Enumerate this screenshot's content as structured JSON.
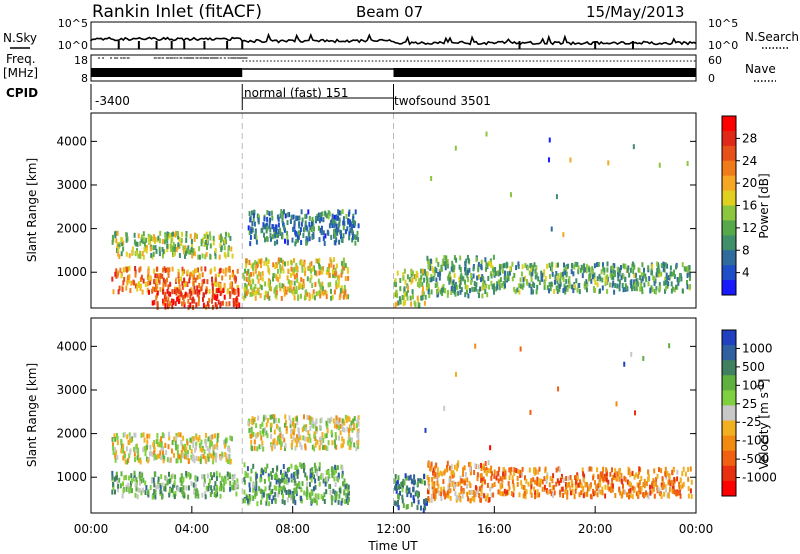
{
  "header": {
    "station": "Rankin Inlet (fitACF)",
    "beam": "Beam 07",
    "date": "15/May/2013"
  },
  "status_panel": {
    "nsky_label": "N.Sky",
    "nsearch_label": "N.Search",
    "noise_ticks": [
      "10^5",
      "10^0"
    ],
    "freq_label": "Freq.",
    "freq_unit": "[MHz]",
    "freq_ticks": [
      "18",
      "8"
    ],
    "nave_label": "Nave",
    "nave_ticks": [
      "60",
      "0"
    ],
    "cpid_label": "CPID",
    "cpid_modes": [
      {
        "start_hour": 0,
        "end_hour": 6,
        "label": "-3400"
      },
      {
        "start_hour": 6,
        "end_hour": 12,
        "label": "normal (fast) 151"
      },
      {
        "start_hour": 12,
        "end_hour": 24,
        "label": "twofsound 3501"
      }
    ]
  },
  "chart_data": [
    {
      "type": "heatmap",
      "parameter": "power",
      "ylabel": "Slant Range [km]",
      "ylim": [
        180,
        4650
      ],
      "yticks": [
        1000,
        2000,
        3000,
        4000
      ],
      "xlim": [
        0,
        24
      ],
      "colorbar": {
        "label": "Power [dB]",
        "ticks": [
          4,
          8,
          12,
          16,
          20,
          24,
          28
        ],
        "range": [
          0,
          32
        ],
        "colors": [
          "#1a1aff",
          "#1f4fc8",
          "#2f6b9c",
          "#3f8f6a",
          "#56a84a",
          "#8cc63f",
          "#e0d020",
          "#f5a623",
          "#f07b1a",
          "#e8501a",
          "#e02818",
          "#ff0000"
        ]
      },
      "echo_regions": [
        {
          "t0": 0.8,
          "t1": 5.8,
          "r0": 600,
          "r1": 1150,
          "level": 0.7
        },
        {
          "t0": 0.8,
          "t1": 5.6,
          "r0": 1400,
          "r1": 1950,
          "level": 0.45
        },
        {
          "t0": 2.2,
          "t1": 5.9,
          "r0": 250,
          "r1": 650,
          "level": 0.85
        },
        {
          "t0": 6.0,
          "t1": 10.2,
          "r0": 450,
          "r1": 1350,
          "level": 0.55
        },
        {
          "t0": 6.2,
          "t1": 10.6,
          "r0": 1700,
          "r1": 2450,
          "level": 0.25
        },
        {
          "t0": 12.0,
          "t1": 13.3,
          "r0": 300,
          "r1": 1100,
          "level": 0.45
        },
        {
          "t0": 13.3,
          "t1": 16.0,
          "r0": 500,
          "r1": 1400,
          "level": 0.35
        },
        {
          "t0": 16.0,
          "t1": 23.8,
          "r0": 600,
          "r1": 1250,
          "level": 0.35
        }
      ]
    },
    {
      "type": "heatmap",
      "parameter": "velocity",
      "ylabel": "Slant Range [km]",
      "ylim": [
        180,
        4650
      ],
      "yticks": [
        1000,
        2000,
        3000,
        4000
      ],
      "xlim": [
        0,
        24
      ],
      "xticks": [
        "00:00",
        "04:00",
        "08:00",
        "12:00",
        "16:00",
        "20:00",
        "00:00"
      ],
      "xlabel": "Time UT",
      "colorbar": {
        "label": "Velocity [m s-1]",
        "ticks": [
          1000,
          500,
          100,
          25,
          -25,
          -100,
          -500,
          -1000
        ],
        "colors": [
          "#2040c0",
          "#3060a0",
          "#408060",
          "#60b040",
          "#7fd040",
          "#c8c8c8",
          "#f0b020",
          "#f08a10",
          "#f06010",
          "#e83010",
          "#ff0000"
        ]
      },
      "echo_regions": [
        {
          "t0": 0.8,
          "t1": 5.8,
          "r0": 600,
          "r1": 1150,
          "level": 0.35
        },
        {
          "t0": 0.8,
          "t1": 5.6,
          "r0": 1400,
          "r1": 2050,
          "level": 0.5
        },
        {
          "t0": 6.0,
          "t1": 10.2,
          "r0": 450,
          "r1": 1350,
          "level": 0.3
        },
        {
          "t0": 6.2,
          "t1": 10.6,
          "r0": 1700,
          "r1": 2450,
          "level": 0.5
        },
        {
          "t0": 12.0,
          "t1": 13.3,
          "r0": 300,
          "r1": 1100,
          "level": 0.2
        },
        {
          "t0": 13.3,
          "t1": 16.0,
          "r0": 500,
          "r1": 1400,
          "level": 0.65
        },
        {
          "t0": 16.0,
          "t1": 23.8,
          "r0": 600,
          "r1": 1250,
          "level": 0.7
        }
      ]
    }
  ]
}
